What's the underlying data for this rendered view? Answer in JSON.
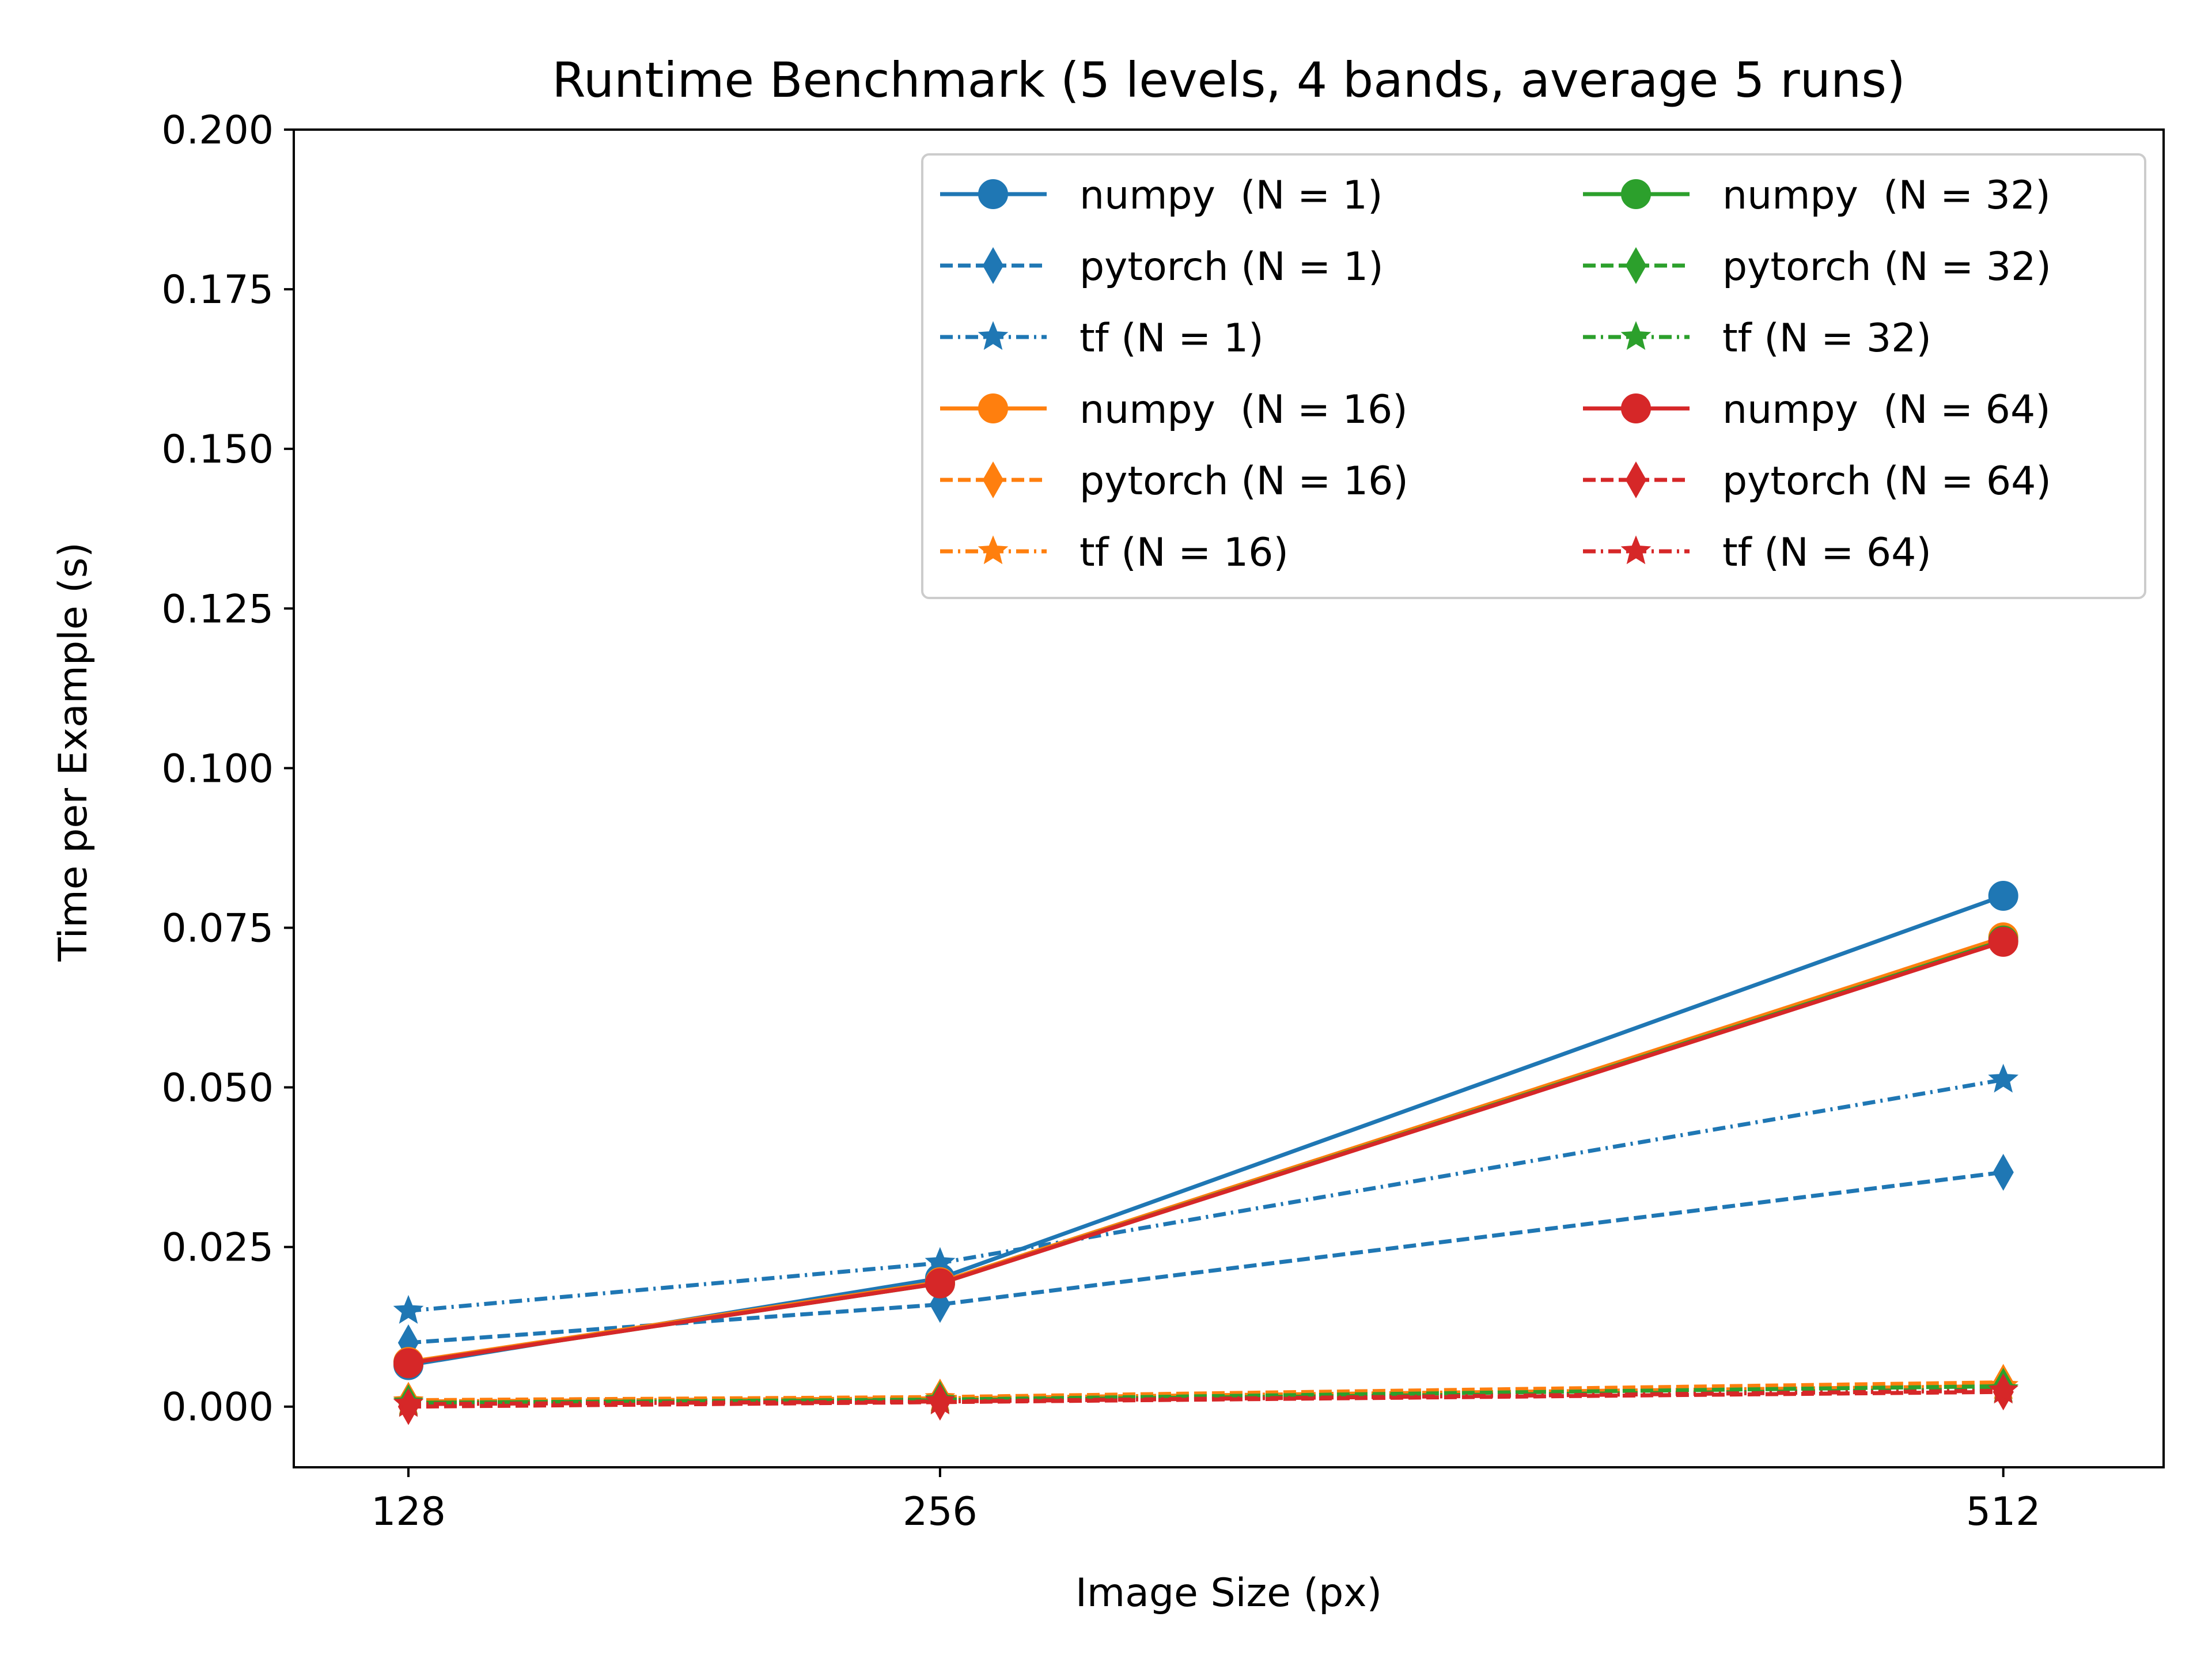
{
  "chart_data": {
    "type": "line",
    "title": "Runtime Benchmark (5 levels, 4 bands, average 5 runs)",
    "xlabel": "Image Size (px)",
    "ylabel": "Time per Example (s)",
    "x": [
      128,
      256,
      512
    ],
    "x_tick_labels": [
      "128",
      "256",
      "512"
    ],
    "y_ticks": [
      0.0,
      0.025,
      0.05,
      0.075,
      0.1,
      0.125,
      0.15,
      0.175,
      0.2
    ],
    "y_tick_labels": [
      "0.000",
      "0.025",
      "0.050",
      "0.075",
      "0.100",
      "0.125",
      "0.150",
      "0.175",
      "0.200"
    ],
    "xlim": [
      100.4,
      550.6
    ],
    "ylim": [
      -0.0095,
      0.2
    ],
    "grid": false,
    "legend_position": "top-right",
    "legend_columns": 2,
    "series": [
      {
        "name": "numpy  (N = 1)",
        "values": [
          0.0065,
          0.0201,
          0.08
        ],
        "color": "#1f77b4",
        "dash": "solid",
        "marker": "circle"
      },
      {
        "name": "pytorch (N = 1)",
        "values": [
          0.01,
          0.016,
          0.0367
        ],
        "color": "#1f77b4",
        "dash": "dashed",
        "marker": "thin-diamond"
      },
      {
        "name": "tf (N = 1)",
        "values": [
          0.015,
          0.0225,
          0.0512
        ],
        "color": "#1f77b4",
        "dash": "dashdot",
        "marker": "star"
      },
      {
        "name": "numpy  (N = 16)",
        "values": [
          0.007,
          0.0195,
          0.0735
        ],
        "color": "#ff7f0e",
        "dash": "solid",
        "marker": "circle"
      },
      {
        "name": "pytorch (N = 16)",
        "values": [
          0.001,
          0.0015,
          0.0038
        ],
        "color": "#ff7f0e",
        "dash": "dashed",
        "marker": "thin-diamond"
      },
      {
        "name": "tf (N = 16)",
        "values": [
          0.0008,
          0.0013,
          0.0032
        ],
        "color": "#ff7f0e",
        "dash": "dashdot",
        "marker": "star"
      },
      {
        "name": "numpy  (N = 32)",
        "values": [
          0.0068,
          0.0193,
          0.073
        ],
        "color": "#2ca02c",
        "dash": "solid",
        "marker": "circle"
      },
      {
        "name": "pytorch (N = 32)",
        "values": [
          0.0006,
          0.0011,
          0.0032
        ],
        "color": "#2ca02c",
        "dash": "dashed",
        "marker": "thin-diamond"
      },
      {
        "name": "tf (N = 32)",
        "values": [
          0.0006,
          0.001,
          0.0027
        ],
        "color": "#2ca02c",
        "dash": "dashdot",
        "marker": "star"
      },
      {
        "name": "numpy  (N = 64)",
        "values": [
          0.0068,
          0.0193,
          0.0728
        ],
        "color": "#d62728",
        "dash": "solid",
        "marker": "circle"
      },
      {
        "name": "pytorch (N = 64)",
        "values": [
          0.0,
          0.0007,
          0.0023
        ],
        "color": "#d62728",
        "dash": "dashed",
        "marker": "thin-diamond"
      },
      {
        "name": "tf (N = 64)",
        "values": [
          0.0004,
          0.0008,
          0.0025
        ],
        "color": "#d62728",
        "dash": "dashdot",
        "marker": "star"
      }
    ]
  }
}
